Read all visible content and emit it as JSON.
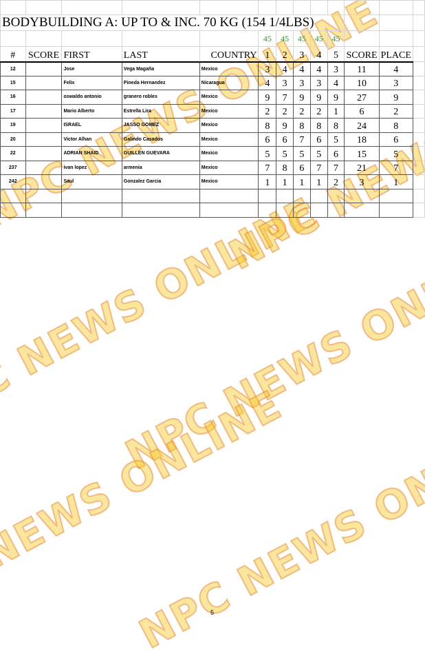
{
  "title": "BODYBUILDING A: UP TO & INC. 70 KG (154 1/4LBS)",
  "judge_counts": [
    "45",
    "45",
    "45",
    "45",
    "45"
  ],
  "headers": {
    "num": "#",
    "score": "SCORE",
    "first": "FIRST",
    "last": "LAST",
    "country": "COUNTRY",
    "j1": "1",
    "j2": "2",
    "j3": "3",
    "j4": "4",
    "j5": "5",
    "total": "SCORE",
    "place": "PLACE"
  },
  "rows": [
    {
      "num": "12",
      "first": "Jose",
      "last": "Vega Magaña",
      "country": "Mexico",
      "s": [
        "3",
        "4",
        "4",
        "4",
        "3"
      ],
      "score": "11",
      "place": "4"
    },
    {
      "num": "15",
      "first": "Felix",
      "last": "Pineda Hernandez",
      "country": "Nicaragua",
      "s": [
        "4",
        "3",
        "3",
        "3",
        "4"
      ],
      "score": "10",
      "place": "3"
    },
    {
      "num": "16",
      "first": "oswaldo antonio",
      "last": "granero robles",
      "country": "Mexico",
      "s": [
        "9",
        "7",
        "9",
        "9",
        "9"
      ],
      "score": "27",
      "place": "9"
    },
    {
      "num": "17",
      "first": "Mario Alberto",
      "last": "Estrella Lira",
      "country": "Mexico",
      "s": [
        "2",
        "2",
        "2",
        "2",
        "1"
      ],
      "score": "6",
      "place": "2"
    },
    {
      "num": "19",
      "first": "ISRAEL",
      "last": "JASSO GOMEZ",
      "country": "Mexico",
      "s": [
        "8",
        "9",
        "8",
        "8",
        "8"
      ],
      "score": "24",
      "place": "8"
    },
    {
      "num": "20",
      "first": "Victor Alhan",
      "last": "Galindo Casados",
      "country": "Mexico",
      "s": [
        "6",
        "6",
        "7",
        "6",
        "5"
      ],
      "score": "18",
      "place": "6"
    },
    {
      "num": "22",
      "first": "ADRIAN SHAID",
      "last": "GUILLEN GUEVARA",
      "country": "Mexico",
      "s": [
        "5",
        "5",
        "5",
        "5",
        "6"
      ],
      "score": "15",
      "place": "5"
    },
    {
      "num": "237",
      "first": "ivan lopez",
      "last": "armenia",
      "country": "Mexico",
      "s": [
        "7",
        "8",
        "6",
        "7",
        "7"
      ],
      "score": "21",
      "place": "7"
    },
    {
      "num": "242",
      "first": "Saul",
      "last": "Gonzalez Garcia",
      "country": "Mexico",
      "s": [
        "1",
        "1",
        "1",
        "1",
        "2"
      ],
      "score": "3",
      "place": "1"
    }
  ],
  "watermark": "NPC NEWS ONLINE",
  "page_number": "5"
}
